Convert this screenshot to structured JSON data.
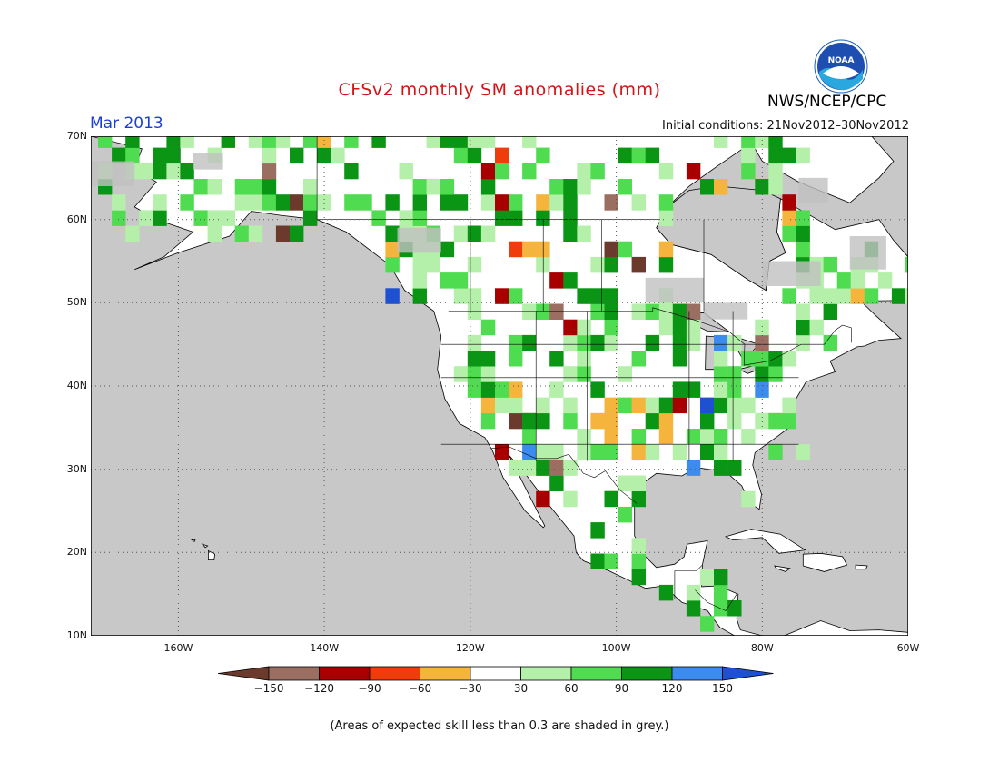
{
  "title": "CFSv2 monthly SM anomalies (mm)",
  "valid_month": "Mar 2013",
  "initial_conditions": "Initial conditions: 21Nov2012–30Nov2012",
  "organization": "NWS/NCEP/CPC",
  "logo_text": "NOAA",
  "footnote": "(Areas of expected skill less than 0.3 are shaded in grey.)",
  "map": {
    "lon_range": [
      -172,
      -60
    ],
    "lat_range": [
      10,
      70
    ],
    "lat_labels": [
      "70N",
      "60N",
      "50N",
      "40N",
      "30N",
      "20N",
      "10N"
    ],
    "lon_labels": [
      "160W",
      "140W",
      "120W",
      "100W",
      "80W",
      "60W"
    ],
    "ocean_color": "#c8c8c8",
    "land_color": "#ffffff"
  },
  "legend": {
    "labels": [
      "−150",
      "−120",
      "−90",
      "−60",
      "−30",
      "30",
      "60",
      "90",
      "120",
      "150"
    ],
    "colors": [
      "#6b3a2c",
      "#9b6e62",
      "#a80000",
      "#f03c0a",
      "#f5b43c",
      "#ffffff",
      "#b4f0aa",
      "#50dc50",
      "#0a9614",
      "#3c8cf0",
      "#1e50d2"
    ]
  }
}
